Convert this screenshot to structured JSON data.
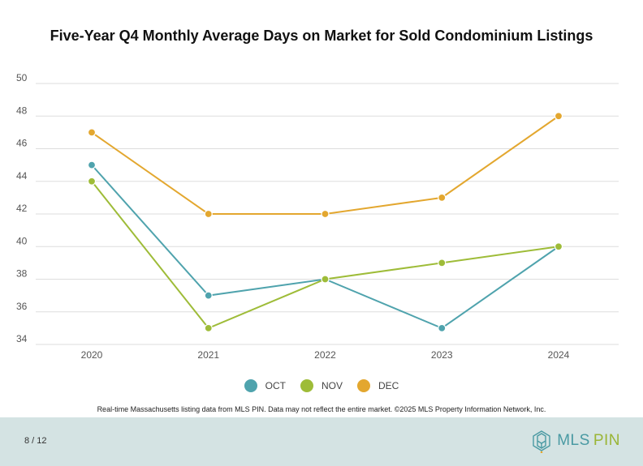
{
  "chart_data": {
    "type": "line",
    "title": "Five-Year Q4 Monthly Average Days on Market for Sold Condominium Listings",
    "xlabel": "",
    "ylabel": "",
    "categories": [
      "2020",
      "2021",
      "2022",
      "2023",
      "2024"
    ],
    "ylim": [
      34,
      50
    ],
    "yticks": [
      50,
      48,
      46,
      44,
      42,
      40,
      38,
      36,
      34
    ],
    "grid": true,
    "legend": "bottom",
    "series": [
      {
        "name": "OCT",
        "color": "#4fa3ad",
        "values": [
          45,
          37,
          38,
          35,
          40
        ]
      },
      {
        "name": "NOV",
        "color": "#9ebc38",
        "values": [
          44,
          35,
          38,
          39,
          40
        ]
      },
      {
        "name": "DEC",
        "color": "#e3a72f",
        "values": [
          47,
          42,
          42,
          43,
          48
        ]
      }
    ]
  },
  "footnote": "Real-time Massachusetts listing data from MLS PIN. Data may not reflect the entire market. ©2025 MLS Property Information Network, Inc.",
  "footer": {
    "page": "8 / 12",
    "logo_mls": "MLS",
    "logo_pin": "PIN"
  }
}
